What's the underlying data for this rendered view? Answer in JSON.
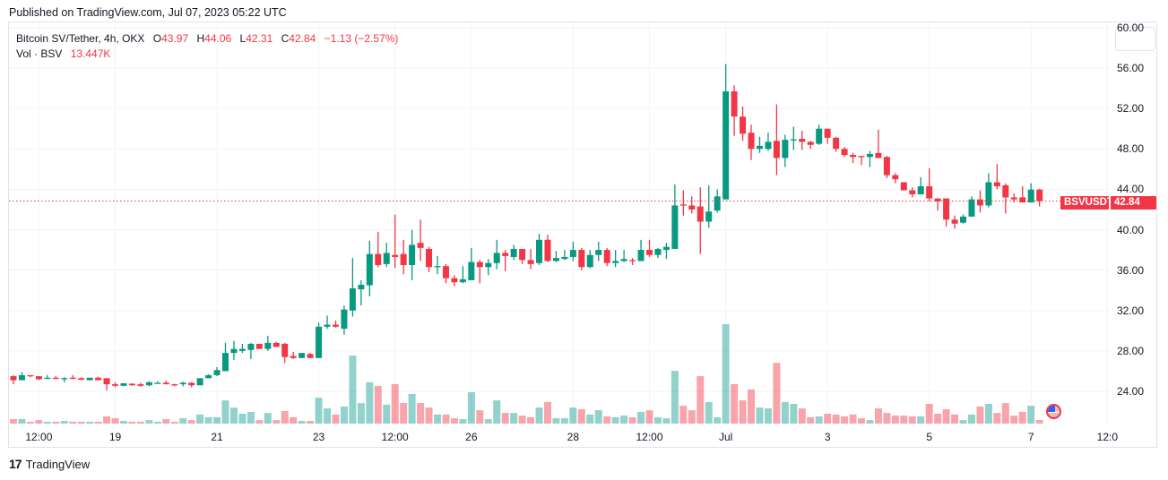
{
  "header": {
    "published": "Published on TradingView.com, Jul 07, 2023 05:22 UTC"
  },
  "legend": {
    "symbol": "Bitcoin SV/Tether, 4h, OKX",
    "o_label": "O",
    "o": "43.97",
    "h_label": "H",
    "h": "44.06",
    "l_label": "L",
    "l": "42.31",
    "c_label": "C",
    "c": "42.84",
    "change": "−1.13 (−2.57%)",
    "vol_label": "Vol · BSV",
    "vol_value": "13.447K"
  },
  "price_tag": {
    "symbol": "BSVUSDT",
    "value": "42.84"
  },
  "footer": {
    "brand": "TradingView"
  },
  "colors": {
    "up": "#089981",
    "down": "#f23645",
    "vol_up": "rgba(38,166,154,0.5)",
    "vol_down": "rgba(242,54,69,0.45)",
    "grid": "#f0f3fa"
  },
  "chart_data": {
    "type": "candlestick",
    "title": "Bitcoin SV/Tether, 4h, OKX",
    "ylim": [
      21.5,
      60
    ],
    "y_ticks": [
      "60.00",
      "56.00",
      "52.00",
      "48.00",
      "44.00",
      "40.00",
      "36.00",
      "32.00",
      "28.00",
      "24.00"
    ],
    "y_tick_values": [
      60,
      56,
      52,
      48,
      44,
      40,
      36,
      32,
      28,
      24
    ],
    "x_ticks": [
      {
        "label": "12:00",
        "bar": 3
      },
      {
        "label": "19",
        "bar": 12
      },
      {
        "label": "21",
        "bar": 24
      },
      {
        "label": "23",
        "bar": 36
      },
      {
        "label": "12:00",
        "bar": 45
      },
      {
        "label": "26",
        "bar": 54
      },
      {
        "label": "28",
        "bar": 66
      },
      {
        "label": "12:00",
        "bar": 75
      },
      {
        "label": "Jul",
        "bar": 84
      },
      {
        "label": "3",
        "bar": 96
      },
      {
        "label": "5",
        "bar": 108
      },
      {
        "label": "7",
        "bar": 120
      },
      {
        "label": "12:0",
        "bar": 129
      }
    ],
    "last_price": 42.84,
    "ohlc": [
      [
        25.5,
        25.6,
        24.7,
        25.1
      ],
      [
        25.1,
        25.9,
        25.1,
        25.6
      ],
      [
        25.6,
        25.6,
        25.4,
        25.5
      ],
      [
        25.5,
        25.5,
        25.1,
        25.2
      ],
      [
        25.3,
        25.6,
        25.2,
        25.35
      ],
      [
        25.35,
        25.5,
        25.2,
        25.25
      ],
      [
        25.25,
        25.4,
        24.9,
        25.3
      ],
      [
        25.35,
        25.6,
        25.2,
        25.25
      ],
      [
        25.3,
        25.4,
        25.1,
        25.15
      ],
      [
        25.1,
        25.35,
        25.1,
        25.35
      ],
      [
        25.35,
        25.45,
        25.1,
        25.1
      ],
      [
        25.3,
        25.3,
        24.1,
        24.7
      ],
      [
        24.7,
        24.9,
        24.4,
        24.55
      ],
      [
        24.55,
        24.8,
        24.5,
        24.8
      ],
      [
        24.75,
        24.8,
        24.55,
        24.6
      ],
      [
        24.7,
        24.85,
        24.45,
        24.55
      ],
      [
        24.6,
        25.0,
        24.5,
        24.9
      ],
      [
        24.8,
        25.0,
        24.75,
        24.85
      ],
      [
        24.85,
        25.05,
        24.7,
        24.7
      ],
      [
        24.7,
        24.75,
        24.5,
        24.6
      ],
      [
        24.7,
        24.95,
        24.5,
        24.85
      ],
      [
        24.85,
        24.9,
        24.4,
        24.6
      ],
      [
        24.6,
        25.3,
        24.6,
        25.3
      ],
      [
        25.3,
        25.7,
        25.3,
        25.6
      ],
      [
        25.6,
        26.4,
        25.5,
        26.1
      ],
      [
        26.0,
        28.8,
        26.0,
        27.8
      ],
      [
        27.8,
        29.0,
        27.1,
        28.2
      ],
      [
        28.0,
        28.7,
        27.8,
        28.2
      ],
      [
        28.1,
        28.8,
        27.2,
        28.7
      ],
      [
        28.7,
        28.7,
        28.2,
        28.2
      ],
      [
        28.2,
        29.5,
        28.0,
        28.8
      ],
      [
        28.8,
        28.9,
        28.4,
        28.4
      ],
      [
        28.7,
        28.8,
        26.8,
        27.4
      ],
      [
        27.5,
        27.9,
        27.2,
        27.3
      ],
      [
        27.3,
        27.8,
        27.3,
        27.8
      ],
      [
        27.7,
        27.8,
        27.3,
        27.3
      ],
      [
        27.3,
        30.8,
        27.3,
        30.4
      ],
      [
        30.4,
        31.5,
        30.2,
        30.6
      ],
      [
        30.6,
        31.0,
        30.3,
        30.4
      ],
      [
        30.2,
        32.5,
        29.6,
        32.1
      ],
      [
        32.0,
        37.2,
        31.4,
        34.2
      ],
      [
        34.1,
        35.0,
        32.5,
        34.55
      ],
      [
        34.5,
        38.9,
        33.4,
        37.6
      ],
      [
        37.6,
        39.8,
        36.3,
        36.5
      ],
      [
        36.6,
        38.7,
        36.3,
        37.7
      ],
      [
        37.5,
        41.5,
        36.2,
        37.3
      ],
      [
        37.6,
        39.0,
        35.6,
        36.5
      ],
      [
        36.5,
        40.0,
        35.0,
        38.5
      ],
      [
        38.7,
        41.0,
        36.9,
        38.2
      ],
      [
        38.1,
        38.3,
        35.8,
        36.3
      ],
      [
        36.3,
        37.4,
        35.6,
        36.4
      ],
      [
        36.4,
        36.6,
        34.7,
        35.2
      ],
      [
        35.2,
        35.5,
        34.4,
        34.8
      ],
      [
        34.8,
        36.4,
        34.7,
        35.1
      ],
      [
        35.0,
        38.2,
        35.0,
        36.8
      ],
      [
        36.8,
        37.0,
        34.7,
        36.3
      ],
      [
        36.3,
        37.1,
        35.5,
        36.7
      ],
      [
        36.7,
        39.0,
        36.1,
        37.7
      ],
      [
        37.7,
        38.0,
        35.9,
        37.4
      ],
      [
        37.3,
        38.5,
        37.0,
        38.1
      ],
      [
        38.1,
        38.1,
        36.6,
        37.0
      ],
      [
        37.0,
        38.1,
        36.1,
        36.6
      ],
      [
        36.7,
        39.6,
        36.5,
        39.0
      ],
      [
        39.0,
        39.5,
        36.8,
        36.9
      ],
      [
        36.9,
        37.9,
        36.8,
        37.2
      ],
      [
        37.1,
        38.0,
        37.0,
        37.3
      ],
      [
        37.3,
        38.8,
        36.9,
        38.0
      ],
      [
        38.0,
        38.2,
        36.0,
        36.3
      ],
      [
        36.3,
        38.0,
        36.2,
        37.5
      ],
      [
        37.5,
        38.8,
        36.9,
        38.0
      ],
      [
        38.0,
        38.2,
        36.4,
        36.7
      ],
      [
        36.7,
        38.0,
        36.3,
        36.9
      ],
      [
        36.9,
        38.0,
        36.8,
        37.1
      ],
      [
        37.0,
        37.2,
        36.5,
        36.9
      ],
      [
        36.9,
        39.0,
        36.9,
        38.0
      ],
      [
        38.0,
        39.0,
        37.3,
        37.5
      ],
      [
        37.5,
        38.2,
        37.2,
        38.1
      ],
      [
        38.0,
        38.7,
        37.1,
        38.3
      ],
      [
        38.1,
        44.5,
        38.1,
        42.4
      ],
      [
        42.5,
        43.9,
        41.4,
        42.4
      ],
      [
        42.4,
        43.3,
        41.6,
        42.0
      ],
      [
        42.3,
        44.2,
        37.6,
        40.8
      ],
      [
        40.8,
        44.4,
        40.2,
        41.8
      ],
      [
        41.9,
        44.0,
        41.7,
        43.3
      ],
      [
        43.0,
        56.4,
        43.0,
        53.7
      ],
      [
        53.7,
        54.3,
        49.3,
        51.2
      ],
      [
        51.2,
        52.2,
        48.8,
        49.5
      ],
      [
        49.6,
        50.4,
        46.9,
        48.0
      ],
      [
        48.0,
        49.2,
        47.6,
        48.3
      ],
      [
        48.0,
        49.6,
        47.8,
        48.7
      ],
      [
        48.8,
        52.4,
        45.4,
        47.1
      ],
      [
        47.1,
        49.4,
        46.2,
        48.9
      ],
      [
        48.9,
        50.2,
        47.9,
        48.95
      ],
      [
        49.0,
        49.8,
        47.9,
        48.7
      ],
      [
        48.7,
        48.8,
        48.0,
        48.4
      ],
      [
        48.5,
        50.4,
        48.4,
        50.0
      ],
      [
        50.0,
        50.0,
        48.5,
        49.1
      ],
      [
        49.1,
        49.2,
        47.7,
        48.0
      ],
      [
        48.0,
        48.2,
        47.2,
        47.4
      ],
      [
        47.4,
        47.6,
        46.6,
        47.2
      ],
      [
        47.3,
        47.3,
        46.4,
        47.2
      ],
      [
        47.2,
        47.8,
        46.2,
        47.5
      ],
      [
        47.6,
        49.9,
        47.1,
        47.1
      ],
      [
        47.2,
        47.3,
        45.1,
        45.4
      ],
      [
        45.4,
        45.6,
        44.6,
        45.0
      ],
      [
        44.7,
        44.7,
        43.9,
        43.9
      ],
      [
        43.9,
        44.2,
        43.2,
        43.5
      ],
      [
        43.5,
        45.2,
        43.5,
        44.3
      ],
      [
        44.3,
        46.1,
        42.8,
        43.1
      ],
      [
        43.1,
        43.1,
        41.9,
        42.8
      ],
      [
        43.1,
        43.1,
        40.3,
        41.0
      ],
      [
        41.0,
        41.4,
        40.1,
        40.6
      ],
      [
        40.7,
        41.5,
        40.6,
        41.3
      ],
      [
        41.3,
        43.3,
        41.3,
        43.0
      ],
      [
        43.0,
        43.9,
        41.7,
        42.4
      ],
      [
        42.4,
        45.6,
        42.2,
        44.7
      ],
      [
        44.7,
        46.5,
        44.0,
        44.3
      ],
      [
        44.4,
        44.6,
        41.6,
        43.2
      ],
      [
        43.2,
        43.6,
        42.7,
        43.0
      ],
      [
        43.2,
        44.3,
        42.7,
        42.7
      ],
      [
        42.7,
        44.6,
        42.7,
        43.97
      ],
      [
        43.97,
        44.06,
        42.31,
        42.84
      ]
    ],
    "volume_k": [
      17,
      17,
      7,
      13,
      7,
      7,
      10,
      7,
      7,
      7,
      7,
      27,
      20,
      10,
      7,
      7,
      13,
      7,
      17,
      7,
      20,
      13,
      34,
      24,
      24,
      87,
      60,
      37,
      44,
      13,
      40,
      13,
      47,
      24,
      10,
      10,
      97,
      57,
      34,
      64,
      255,
      77,
      155,
      141,
      71,
      148,
      77,
      111,
      77,
      60,
      34,
      34,
      20,
      17,
      118,
      50,
      17,
      87,
      40,
      40,
      30,
      24,
      60,
      81,
      20,
      20,
      60,
      54,
      34,
      50,
      27,
      24,
      30,
      24,
      44,
      50,
      24,
      20,
      198,
      67,
      50,
      178,
      81,
      24,
      373,
      148,
      87,
      128,
      60,
      57,
      228,
      81,
      74,
      57,
      24,
      27,
      37,
      34,
      27,
      34,
      20,
      13,
      57,
      40,
      30,
      30,
      27,
      27,
      74,
      37,
      54,
      34,
      13,
      34,
      64,
      74,
      40,
      77,
      30,
      44,
      67,
      13.447
    ]
  }
}
